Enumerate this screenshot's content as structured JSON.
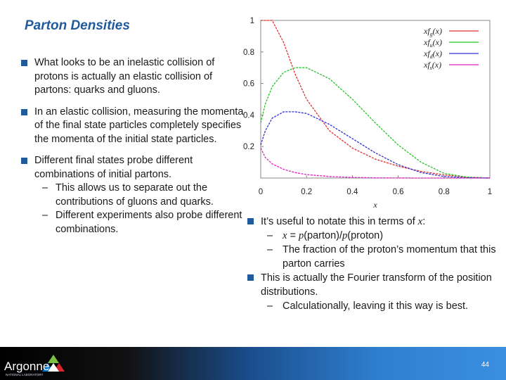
{
  "title": "Parton Densities",
  "left_bullets": [
    {
      "text": "What looks to be an inelastic collision of protons is actually an elastic collision of partons: quarks and gluons."
    },
    {
      "text": "In an elastic collision, measuring the momenta of the final state particles completely specifies the momenta of the initial state particles."
    },
    {
      "text": "Different final states probe different combinations of initial partons.",
      "subs": [
        "This allows us to separate out the contributions of gluons and quarks.",
        "Different experiments also probe different combinations."
      ]
    }
  ],
  "right_bullets": {
    "b1": "It’s useful to notate this in terms of",
    "b1_var": "x",
    "b1_end": ":",
    "sub1_x": "x",
    "sub1_eq": " = ",
    "sub1_p1": "p",
    "sub1_parton": "(parton)/",
    "sub1_p2": "p",
    "sub1_proton": "(proton)",
    "sub2": "The fraction of the proton’s momentum that this parton carries",
    "b2": "This is actually the Fourier transform of the position distributions.",
    "sub3": "Calculationally, leaving it this way is best."
  },
  "footer": {
    "logo_text": "Argonne",
    "logo_subtext": "NATIONAL LABORATORY",
    "page_number": "44"
  },
  "chart_data": {
    "type": "line",
    "xlabel": "x",
    "ylabel": "",
    "xlim": [
      0,
      1
    ],
    "ylim": [
      0,
      1
    ],
    "xticks": [
      "0",
      "0.2",
      "0.4",
      "0.6",
      "0.8",
      "1"
    ],
    "yticks": [
      "0.2",
      "0.4",
      "0.6",
      "0.8",
      "1"
    ],
    "legend_placement": "top-right",
    "x": [
      0.0,
      0.02,
      0.05,
      0.1,
      0.15,
      0.2,
      0.3,
      0.4,
      0.5,
      0.6,
      0.7,
      0.8,
      0.9,
      1.0
    ],
    "series": [
      {
        "name": "xf_g(x)",
        "color": "#e03030",
        "values": [
          1.0,
          1.0,
          1.0,
          0.86,
          0.66,
          0.5,
          0.3,
          0.19,
          0.12,
          0.075,
          0.042,
          0.02,
          0.006,
          0.0
        ]
      },
      {
        "name": "xf_u(x)",
        "color": "#22c822",
        "values": [
          0.35,
          0.47,
          0.58,
          0.67,
          0.7,
          0.7,
          0.63,
          0.5,
          0.35,
          0.21,
          0.1,
          0.03,
          0.006,
          0.0
        ]
      },
      {
        "name": "xf_d(x)",
        "color": "#3030d8",
        "values": [
          0.21,
          0.3,
          0.38,
          0.42,
          0.42,
          0.41,
          0.34,
          0.25,
          0.16,
          0.085,
          0.035,
          0.01,
          0.002,
          0.0
        ]
      },
      {
        "name": "xf_s(x)",
        "color": "#e020c0",
        "values": [
          0.19,
          0.13,
          0.09,
          0.055,
          0.035,
          0.022,
          0.01,
          0.004,
          0.0015,
          0.0005,
          0.0,
          0.0,
          0.0,
          0.0
        ]
      }
    ]
  }
}
